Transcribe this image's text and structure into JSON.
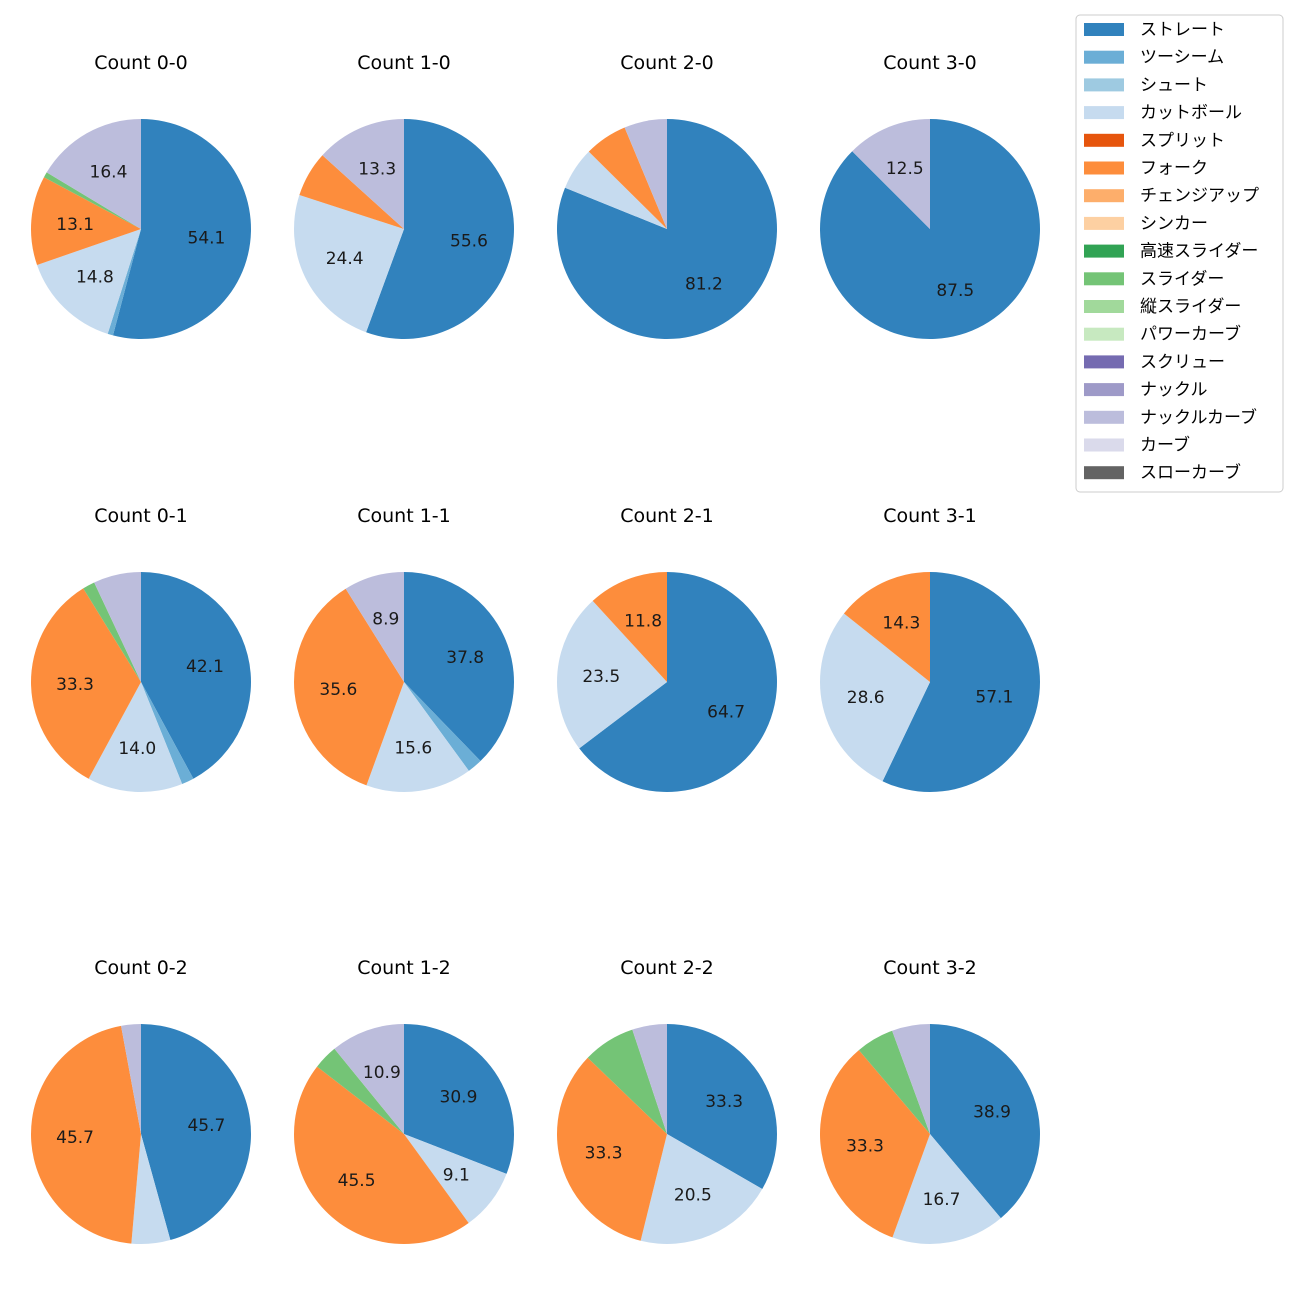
{
  "legend": [
    {
      "label": "ストレート",
      "color": "#3182bd"
    },
    {
      "label": "ツーシーム",
      "color": "#6baed6"
    },
    {
      "label": "シュート",
      "color": "#9ecae1"
    },
    {
      "label": "カットボール",
      "color": "#c6dbef"
    },
    {
      "label": "スプリット",
      "color": "#e6550d"
    },
    {
      "label": "フォーク",
      "color": "#fd8d3c"
    },
    {
      "label": "チェンジアップ",
      "color": "#fdae6b"
    },
    {
      "label": "シンカー",
      "color": "#fdd0a2"
    },
    {
      "label": "高速スライダー",
      "color": "#31a354"
    },
    {
      "label": "スライダー",
      "color": "#74c476"
    },
    {
      "label": "縦スライダー",
      "color": "#a1d99b"
    },
    {
      "label": "パワーカーブ",
      "color": "#c7e9c0"
    },
    {
      "label": "スクリュー",
      "color": "#756bb1"
    },
    {
      "label": "ナックル",
      "color": "#9e9ac8"
    },
    {
      "label": "ナックルカーブ",
      "color": "#bcbddc"
    },
    {
      "label": "カーブ",
      "color": "#dadaeb"
    },
    {
      "label": "スローカーブ",
      "color": "#636363"
    }
  ],
  "chart_data": [
    {
      "type": "pie",
      "title": "Count 0-0",
      "slices": [
        {
          "category": "ストレート",
          "value": 54.1,
          "label": "54.1"
        },
        {
          "category": "ツーシーム",
          "value": 0.8,
          "label": ""
        },
        {
          "category": "カットボール",
          "value": 14.8,
          "label": "14.8"
        },
        {
          "category": "フォーク",
          "value": 13.1,
          "label": "13.1"
        },
        {
          "category": "スライダー",
          "value": 0.8,
          "label": ""
        },
        {
          "category": "ナックルカーブ",
          "value": 16.4,
          "label": "16.4"
        }
      ]
    },
    {
      "type": "pie",
      "title": "Count 1-0",
      "slices": [
        {
          "category": "ストレート",
          "value": 55.6,
          "label": "55.6"
        },
        {
          "category": "カットボール",
          "value": 24.4,
          "label": "24.4"
        },
        {
          "category": "フォーク",
          "value": 6.7,
          "label": ""
        },
        {
          "category": "ナックルカーブ",
          "value": 13.3,
          "label": "13.3"
        }
      ]
    },
    {
      "type": "pie",
      "title": "Count 2-0",
      "slices": [
        {
          "category": "ストレート",
          "value": 81.2,
          "label": "81.2"
        },
        {
          "category": "カットボール",
          "value": 6.3,
          "label": ""
        },
        {
          "category": "フォーク",
          "value": 6.3,
          "label": ""
        },
        {
          "category": "ナックルカーブ",
          "value": 6.3,
          "label": ""
        }
      ]
    },
    {
      "type": "pie",
      "title": "Count 3-0",
      "slices": [
        {
          "category": "ストレート",
          "value": 87.5,
          "label": "87.5"
        },
        {
          "category": "ナックルカーブ",
          "value": 12.5,
          "label": "12.5"
        }
      ]
    },
    {
      "type": "pie",
      "title": "Count 0-1",
      "slices": [
        {
          "category": "ストレート",
          "value": 42.1,
          "label": "42.1"
        },
        {
          "category": "ツーシーム",
          "value": 1.8,
          "label": ""
        },
        {
          "category": "カットボール",
          "value": 14.0,
          "label": "14.0"
        },
        {
          "category": "フォーク",
          "value": 33.3,
          "label": "33.3"
        },
        {
          "category": "スライダー",
          "value": 1.8,
          "label": ""
        },
        {
          "category": "ナックルカーブ",
          "value": 7.0,
          "label": ""
        }
      ]
    },
    {
      "type": "pie",
      "title": "Count 1-1",
      "slices": [
        {
          "category": "ストレート",
          "value": 37.8,
          "label": "37.8"
        },
        {
          "category": "ツーシーム",
          "value": 2.2,
          "label": ""
        },
        {
          "category": "カットボール",
          "value": 15.6,
          "label": "15.6"
        },
        {
          "category": "フォーク",
          "value": 35.6,
          "label": "35.6"
        },
        {
          "category": "ナックルカーブ",
          "value": 8.9,
          "label": "8.9"
        }
      ]
    },
    {
      "type": "pie",
      "title": "Count 2-1",
      "slices": [
        {
          "category": "ストレート",
          "value": 64.7,
          "label": "64.7"
        },
        {
          "category": "カットボール",
          "value": 23.5,
          "label": "23.5"
        },
        {
          "category": "フォーク",
          "value": 11.8,
          "label": "11.8"
        }
      ]
    },
    {
      "type": "pie",
      "title": "Count 3-1",
      "slices": [
        {
          "category": "ストレート",
          "value": 57.1,
          "label": "57.1"
        },
        {
          "category": "カットボール",
          "value": 28.6,
          "label": "28.6"
        },
        {
          "category": "フォーク",
          "value": 14.3,
          "label": "14.3"
        }
      ]
    },
    {
      "type": "pie",
      "title": "Count 0-2",
      "slices": [
        {
          "category": "ストレート",
          "value": 45.7,
          "label": "45.7"
        },
        {
          "category": "カットボール",
          "value": 5.7,
          "label": ""
        },
        {
          "category": "フォーク",
          "value": 45.7,
          "label": "45.7"
        },
        {
          "category": "ナックルカーブ",
          "value": 2.9,
          "label": ""
        }
      ]
    },
    {
      "type": "pie",
      "title": "Count 1-2",
      "slices": [
        {
          "category": "ストレート",
          "value": 30.9,
          "label": "30.9"
        },
        {
          "category": "カットボール",
          "value": 9.1,
          "label": "9.1"
        },
        {
          "category": "フォーク",
          "value": 45.5,
          "label": "45.5"
        },
        {
          "category": "スライダー",
          "value": 3.6,
          "label": ""
        },
        {
          "category": "ナックルカーブ",
          "value": 10.9,
          "label": "10.9"
        }
      ]
    },
    {
      "type": "pie",
      "title": "Count 2-2",
      "slices": [
        {
          "category": "ストレート",
          "value": 33.3,
          "label": "33.3"
        },
        {
          "category": "カットボール",
          "value": 20.5,
          "label": "20.5"
        },
        {
          "category": "フォーク",
          "value": 33.3,
          "label": "33.3"
        },
        {
          "category": "スライダー",
          "value": 7.7,
          "label": ""
        },
        {
          "category": "ナックルカーブ",
          "value": 5.1,
          "label": ""
        }
      ]
    },
    {
      "type": "pie",
      "title": "Count 3-2",
      "slices": [
        {
          "category": "ストレート",
          "value": 38.9,
          "label": "38.9"
        },
        {
          "category": "カットボール",
          "value": 16.7,
          "label": "16.7"
        },
        {
          "category": "フォーク",
          "value": 33.3,
          "label": "33.3"
        },
        {
          "category": "スライダー",
          "value": 5.6,
          "label": ""
        },
        {
          "category": "ナックルカーブ",
          "value": 5.6,
          "label": ""
        }
      ]
    }
  ]
}
